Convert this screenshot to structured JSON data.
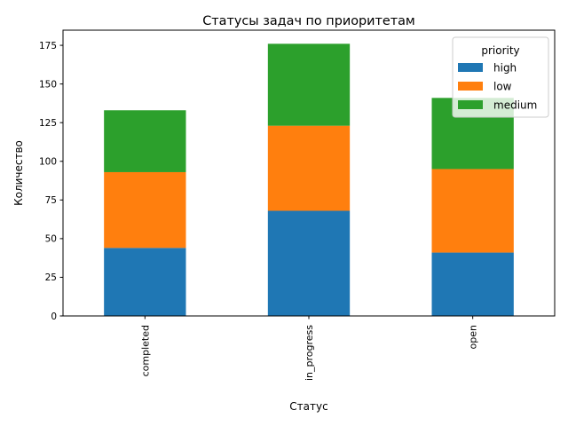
{
  "chart_data": {
    "type": "bar",
    "stacked": true,
    "title": "Статусы задач по приоритетам",
    "xlabel": "Статус",
    "ylabel": "Количество",
    "categories": [
      "completed",
      "in_progress",
      "open"
    ],
    "series": [
      {
        "name": "high",
        "color": "#1f77b4",
        "values": [
          44,
          68,
          41
        ]
      },
      {
        "name": "low",
        "color": "#ff7f0e",
        "values": [
          49,
          55,
          54
        ]
      },
      {
        "name": "medium",
        "color": "#2ca02c",
        "values": [
          40,
          53,
          46
        ]
      }
    ],
    "yticks": [
      0,
      25,
      50,
      75,
      100,
      125,
      150,
      175
    ],
    "ylim": [
      0,
      184.8
    ],
    "legend": {
      "title": "priority",
      "placement": "top-right"
    },
    "grid": false
  }
}
